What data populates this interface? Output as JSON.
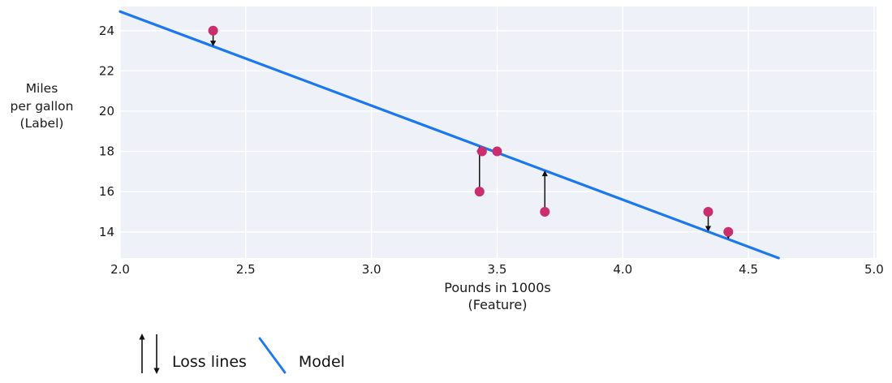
{
  "chart_data": {
    "type": "scatter",
    "xlabel": "Pounds in 1000s\n(Feature)",
    "ylabel": "Miles\nper gallon\n(Label)",
    "xlim": [
      2.0,
      5.01
    ],
    "ylim": [
      12.7,
      25.2
    ],
    "grid": true,
    "x_ticks": [
      {
        "value": 2.0,
        "label": "2.0"
      },
      {
        "value": 2.5,
        "label": "2.5"
      },
      {
        "value": 3.0,
        "label": "3.0"
      },
      {
        "value": 3.5,
        "label": "3.5"
      },
      {
        "value": 4.0,
        "label": "4.0"
      },
      {
        "value": 4.5,
        "label": "4.5"
      },
      {
        "value": 5.0,
        "label": "5.0"
      }
    ],
    "y_ticks": [
      {
        "value": 14,
        "label": "14"
      },
      {
        "value": 16,
        "label": "16"
      },
      {
        "value": 18,
        "label": "18"
      },
      {
        "value": 20,
        "label": "20"
      },
      {
        "value": 22,
        "label": "22"
      },
      {
        "value": 24,
        "label": "24"
      }
    ],
    "points": [
      {
        "x": 2.37,
        "y": 24
      },
      {
        "x": 3.44,
        "y": 18
      },
      {
        "x": 3.5,
        "y": 18
      },
      {
        "x": 3.43,
        "y": 16
      },
      {
        "x": 3.69,
        "y": 15
      },
      {
        "x": 4.34,
        "y": 15
      },
      {
        "x": 4.42,
        "y": 14
      }
    ],
    "model_line": {
      "slope": -4.675,
      "intercept": 34.3,
      "x1": 2.0,
      "y1": 24.95,
      "x2": 4.62,
      "y2": 12.7
    },
    "loss_lines": [
      {
        "x": 2.37,
        "from_y": 24,
        "to_y": 23.22
      },
      {
        "x": 3.43,
        "from_y": 16,
        "to_y": 18.26
      },
      {
        "x": 3.69,
        "from_y": 15,
        "to_y": 17.05
      },
      {
        "x": 4.34,
        "from_y": 15,
        "to_y": 14.01
      },
      {
        "x": 4.42,
        "from_y": 14,
        "to_y": 13.64
      }
    ],
    "legend": {
      "loss_label": "Loss lines",
      "model_label": "Model"
    },
    "colors": {
      "plot_background": "#eef1f7",
      "gridline": "#ffffff",
      "point": "#cb2e6e",
      "model_line": "#1b78f0",
      "loss_arrow": "#111111",
      "text": "#1a1a1a"
    }
  }
}
